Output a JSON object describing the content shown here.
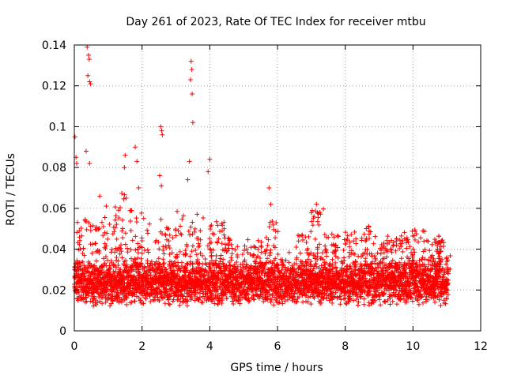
{
  "chart_data": {
    "type": "scatter",
    "title": "Day 261 of 2023, Rate Of TEC Index for receiver mtbu",
    "xlabel": "GPS time / hours",
    "ylabel": "ROTI / TECUs",
    "xlim": [
      0,
      12
    ],
    "ylim": [
      0,
      0.14
    ],
    "xticks": [
      "0",
      "2",
      "4",
      "6",
      "8",
      "10",
      "12"
    ],
    "yticks": [
      "0",
      "0.02",
      "0.04",
      "0.06",
      "0.08",
      "0.1",
      "0.12",
      "0.14"
    ],
    "grid": true,
    "marker": "plus",
    "color": "#ff0000",
    "series": [
      {
        "name": "ROTI",
        "x_range": [
          0,
          11.05
        ],
        "baseline_band": [
          0.008,
          0.035
        ],
        "notable_points": [
          {
            "x": 0.02,
            "y": 0.095
          },
          {
            "x": 0.05,
            "y": 0.085
          },
          {
            "x": 0.07,
            "y": 0.082
          },
          {
            "x": 0.38,
            "y": 0.139
          },
          {
            "x": 0.42,
            "y": 0.135
          },
          {
            "x": 0.44,
            "y": 0.133
          },
          {
            "x": 0.4,
            "y": 0.125
          },
          {
            "x": 0.45,
            "y": 0.122
          },
          {
            "x": 0.48,
            "y": 0.121
          },
          {
            "x": 0.35,
            "y": 0.088
          },
          {
            "x": 0.45,
            "y": 0.082
          },
          {
            "x": 0.75,
            "y": 0.066
          },
          {
            "x": 1.5,
            "y": 0.086
          },
          {
            "x": 1.48,
            "y": 0.08
          },
          {
            "x": 1.8,
            "y": 0.09
          },
          {
            "x": 1.85,
            "y": 0.083
          },
          {
            "x": 1.9,
            "y": 0.07
          },
          {
            "x": 2.55,
            "y": 0.1
          },
          {
            "x": 2.58,
            "y": 0.098
          },
          {
            "x": 2.6,
            "y": 0.096
          },
          {
            "x": 2.52,
            "y": 0.076
          },
          {
            "x": 2.57,
            "y": 0.071
          },
          {
            "x": 3.45,
            "y": 0.132
          },
          {
            "x": 3.47,
            "y": 0.128
          },
          {
            "x": 3.43,
            "y": 0.123
          },
          {
            "x": 3.48,
            "y": 0.116
          },
          {
            "x": 3.5,
            "y": 0.102
          },
          {
            "x": 3.4,
            "y": 0.083
          },
          {
            "x": 3.35,
            "y": 0.074
          },
          {
            "x": 4.0,
            "y": 0.084
          },
          {
            "x": 3.95,
            "y": 0.078
          },
          {
            "x": 5.75,
            "y": 0.07
          },
          {
            "x": 5.8,
            "y": 0.062
          },
          {
            "x": 7.15,
            "y": 0.062
          },
          {
            "x": 7.25,
            "y": 0.058
          }
        ]
      }
    ]
  }
}
